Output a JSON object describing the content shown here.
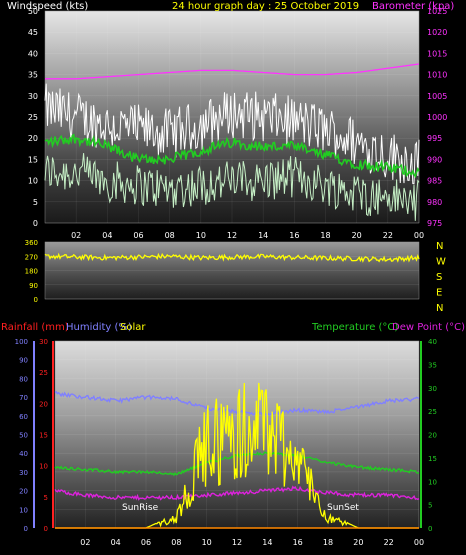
{
  "colors": {
    "bg": "#000000",
    "wind_axis": "#ffffff",
    "title": "#ffff00",
    "barometer": "#ff33ff",
    "gust": "#ffffff",
    "avg": "#22cc22",
    "wind_light": "#c6f0c6",
    "direction": "#ffff00",
    "compass": "#ffff00",
    "rain": "#ff2020",
    "humidity": "#8080ff",
    "solar": "#ffff00",
    "temperature": "#22cc22",
    "dewpoint": "#dd22dd",
    "rain_line": "#ff8800"
  },
  "chart_data": [
    {
      "type": "line",
      "title": "24 hour graph day : 25 October 2019",
      "ylabel": "Windspeed (kts)",
      "y2label": "Barometer (kpa)",
      "ylim": [
        0,
        50
      ],
      "y2lim": [
        975,
        1025
      ],
      "y_ticks": [
        "0",
        "5",
        "10",
        "15",
        "20",
        "25",
        "30",
        "35",
        "40",
        "45",
        "50"
      ],
      "y2_ticks": [
        "975",
        "980",
        "985",
        "990",
        "995",
        "1000",
        "1005",
        "1010",
        "1015",
        "1020",
        "1025"
      ],
      "x_ticks": [
        "02",
        "04",
        "06",
        "08",
        "10",
        "12",
        "14",
        "16",
        "18",
        "20",
        "22",
        "00"
      ],
      "x": [
        0,
        2,
        4,
        6,
        8,
        10,
        12,
        14,
        16,
        18,
        20,
        22,
        24
      ],
      "series": [
        {
          "name": "Windspeed (kts) gust",
          "values": [
            27,
            25,
            23,
            22,
            21,
            23,
            26,
            25,
            24,
            22,
            19,
            16,
            14
          ]
        },
        {
          "name": "Windspeed (kts) average",
          "values": [
            19,
            20,
            18,
            15,
            15,
            17,
            19,
            18,
            18,
            16,
            14,
            13,
            12
          ]
        },
        {
          "name": "Windspeed (kts) lull",
          "values": [
            12,
            12,
            10,
            9,
            8,
            9,
            10,
            10,
            11,
            9,
            7,
            6,
            5
          ]
        },
        {
          "name": "Barometer (kpa)",
          "values": [
            1009,
            1009,
            1009.5,
            1010,
            1010.5,
            1011,
            1011,
            1010.5,
            1010,
            1010,
            1010.5,
            1011.5,
            1012.5
          ]
        }
      ]
    },
    {
      "type": "line",
      "ylim": [
        0,
        360
      ],
      "y_ticks": [
        "0",
        "90",
        "180",
        "270",
        "360"
      ],
      "compass": [
        "N",
        "W",
        "S",
        "E",
        "N"
      ],
      "x": [
        0,
        2,
        4,
        6,
        8,
        10,
        12,
        14,
        16,
        18,
        20,
        22,
        24
      ],
      "series": [
        {
          "name": "Wind direction",
          "values": [
            270,
            265,
            260,
            265,
            270,
            260,
            265,
            268,
            262,
            258,
            255,
            250,
            260
          ]
        }
      ]
    },
    {
      "type": "line",
      "labels": {
        "rain": "Rainfall (mm)",
        "humidity": "Humidity (%)",
        "solar": "Solar",
        "temperature": "Temperature (°C)",
        "dewpoint": "Dew Point (°C)"
      },
      "y_left1_ticks": [
        "0",
        "10",
        "20",
        "30",
        "40",
        "50",
        "60",
        "70",
        "80",
        "90",
        "100"
      ],
      "y_left2_ticks": [
        "0",
        "5",
        "10",
        "15",
        "20",
        "25",
        "30"
      ],
      "y_right_ticks": [
        "0",
        "5",
        "10",
        "15",
        "20",
        "25",
        "30",
        "35",
        "40"
      ],
      "ylim_left1": [
        0,
        100
      ],
      "ylim_left2": [
        0,
        30
      ],
      "ylim_right": [
        0,
        40
      ],
      "x_ticks": [
        "02",
        "04",
        "06",
        "08",
        "10",
        "12",
        "14",
        "16",
        "18",
        "20",
        "22",
        "00"
      ],
      "annotations": [
        "SunRise",
        "SunSet"
      ],
      "x": [
        0,
        2,
        4,
        6,
        8,
        10,
        12,
        14,
        16,
        18,
        20,
        22,
        24
      ],
      "series": [
        {
          "name": "Humidity (%)",
          "values": [
            72,
            70,
            68,
            70,
            69,
            64,
            62,
            61,
            63,
            62,
            65,
            68,
            69
          ]
        },
        {
          "name": "Temperature (°C)",
          "values": [
            13,
            12.5,
            12,
            12,
            11.5,
            14,
            15.5,
            16,
            15.5,
            14,
            13,
            12.5,
            12
          ]
        },
        {
          "name": "Dew Point (°C)",
          "values": [
            8,
            7,
            6.5,
            6.5,
            6.5,
            7,
            7.5,
            8,
            8.5,
            7.5,
            7,
            7,
            6.5
          ]
        },
        {
          "name": "Solar",
          "values": [
            0,
            0,
            0,
            0,
            3,
            25,
            28,
            30,
            20,
            3,
            0,
            0,
            0
          ]
        },
        {
          "name": "Rainfall (mm)",
          "values": [
            0,
            0,
            0,
            0,
            0,
            0,
            0,
            0,
            0,
            0,
            0,
            0,
            0
          ]
        }
      ]
    }
  ]
}
